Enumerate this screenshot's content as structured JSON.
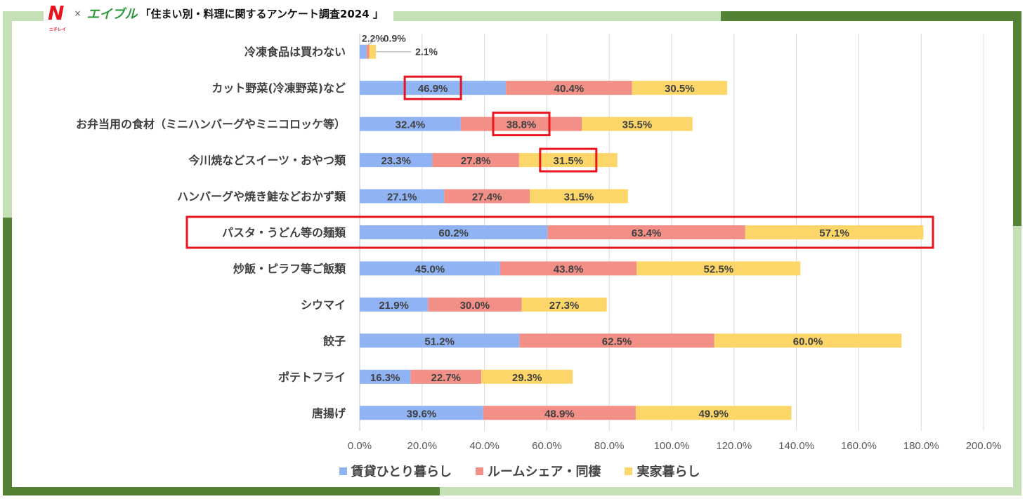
{
  "header": {
    "logo_n": "N",
    "logo_n_sub": "ニチレイ",
    "times": "×",
    "logo_e": "エイブル",
    "title": "「住まい別・料理に関するアンケート調査2024 」"
  },
  "colors": {
    "series1": "#8fb3f3",
    "series2": "#f28f86",
    "series3": "#fdd66a",
    "highlight": "#e8141e",
    "frame_dark": "#548235",
    "frame_light": "#c5e0b4"
  },
  "chart_data": {
    "type": "bar",
    "orientation": "horizontal",
    "stacked": true,
    "categories": [
      "冷凍食品は買わない",
      "カット野菜(冷凍野菜)など",
      "お弁当用の食材（ミニハンバーグやミニコロッケ等）",
      "今川焼などスイーツ・おやつ類",
      "ハンバーグや焼き鮭などおかず類",
      "パスタ・うどん等の麺類",
      "炒飯・ピラフ等ご飯類",
      "シウマイ",
      "餃子",
      "ポテトフライ",
      "唐揚げ"
    ],
    "series": [
      {
        "name": "賃貸ひとり暮らし",
        "values": [
          2.2,
          46.9,
          32.4,
          23.3,
          27.1,
          60.2,
          45.0,
          21.9,
          51.2,
          16.3,
          39.6
        ]
      },
      {
        "name": "ルームシェア・同棲",
        "values": [
          0.9,
          40.4,
          38.8,
          27.8,
          27.4,
          63.4,
          43.8,
          30.0,
          62.5,
          22.7,
          48.9
        ]
      },
      {
        "name": "実家暮らし",
        "values": [
          2.1,
          30.5,
          35.5,
          31.5,
          31.5,
          57.1,
          52.5,
          27.3,
          60.0,
          29.3,
          49.9
        ]
      }
    ],
    "xlim": [
      0,
      200
    ],
    "xticks": [
      "0.0%",
      "20.0%",
      "40.0%",
      "60.0%",
      "80.0%",
      "100.0%",
      "120.0%",
      "140.0%",
      "160.0%",
      "180.0%",
      "200.0%"
    ],
    "xtick_values": [
      0,
      20,
      40,
      60,
      80,
      100,
      120,
      140,
      160,
      180,
      200
    ],
    "grid": true,
    "legend": "bottom",
    "highlights": [
      {
        "category_index": 1,
        "series_index": 0
      },
      {
        "category_index": 2,
        "series_index": 1
      },
      {
        "category_index": 3,
        "series_index": 2
      },
      {
        "category_index": 5,
        "series_index": -1
      }
    ]
  }
}
